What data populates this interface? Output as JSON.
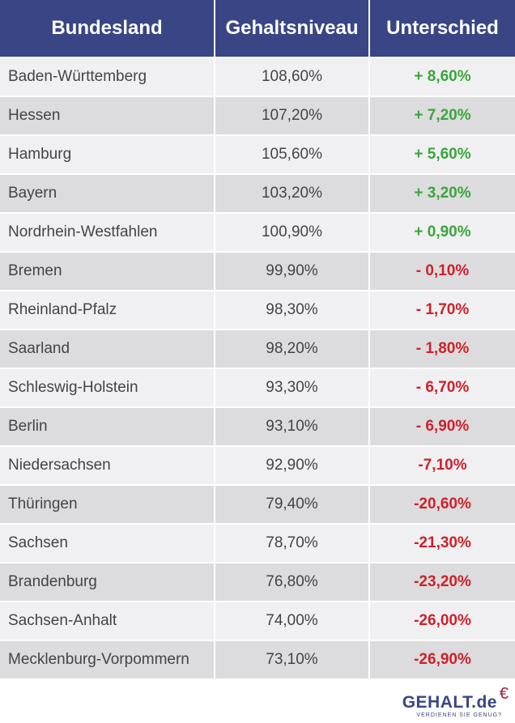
{
  "table": {
    "headers": [
      "Bundesland",
      "Gehaltsniveau",
      "Unterschied"
    ],
    "rows": [
      {
        "state": "Baden-Württemberg",
        "level": "108,60%",
        "diff": "+ 8,60%"
      },
      {
        "state": "Hessen",
        "level": "107,20%",
        "diff": "+ 7,20%"
      },
      {
        "state": "Hamburg",
        "level": "105,60%",
        "diff": "+ 5,60%"
      },
      {
        "state": "Bayern",
        "level": "103,20%",
        "diff": "+ 3,20%"
      },
      {
        "state": "Nordrhein-Westfahlen",
        "level": "100,90%",
        "diff": "+ 0,90%"
      },
      {
        "state": "Bremen",
        "level": "99,90%",
        "diff": "- 0,10%"
      },
      {
        "state": "Rheinland-Pfalz",
        "level": "98,30%",
        "diff": "- 1,70%"
      },
      {
        "state": "Saarland",
        "level": "98,20%",
        "diff": "- 1,80%"
      },
      {
        "state": "Schleswig-Holstein",
        "level": "93,30%",
        "diff": "- 6,70%"
      },
      {
        "state": "Berlin",
        "level": "93,10%",
        "diff": "- 6,90%"
      },
      {
        "state": "Niedersachsen",
        "level": "92,90%",
        "diff": "-7,10%"
      },
      {
        "state": "Thüringen",
        "level": "79,40%",
        "diff": "-20,60%"
      },
      {
        "state": "Sachsen",
        "level": "78,70%",
        "diff": "-21,30%"
      },
      {
        "state": "Brandenburg",
        "level": "76,80%",
        "diff": "-23,20%"
      },
      {
        "state": "Sachsen-Anhalt",
        "level": "74,00%",
        "diff": "-26,00%"
      },
      {
        "state": "Mecklenburg-Vorpommern",
        "level": "73,10%",
        "diff": "-26,90%"
      }
    ]
  },
  "logo": {
    "main": "GEHALT.de",
    "euro": "€",
    "tagline": "VERDIENEN SIE GENUG?"
  },
  "colors": {
    "header_bg": "#3a4585",
    "positive": "#3aa63a",
    "negative": "#d0202a",
    "row_light": "#f0f0f2",
    "row_dark": "#dcdcde"
  }
}
